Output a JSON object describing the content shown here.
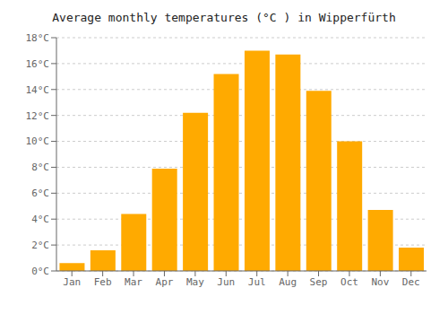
{
  "chart_data": {
    "type": "bar",
    "title": "Average monthly temperatures (°C ) in Wipperfürth",
    "categories": [
      "Jan",
      "Feb",
      "Mar",
      "Apr",
      "May",
      "Jun",
      "Jul",
      "Aug",
      "Sep",
      "Oct",
      "Nov",
      "Dec"
    ],
    "values": [
      0.6,
      1.6,
      4.4,
      7.9,
      12.2,
      15.2,
      17.0,
      16.7,
      13.9,
      10.0,
      4.7,
      1.8
    ],
    "color": "#FFAA00",
    "ylim": [
      0,
      18
    ],
    "yticks": [
      {
        "value": 0,
        "label": "0°C"
      },
      {
        "value": 2,
        "label": "2°C"
      },
      {
        "value": 4,
        "label": "4°C"
      },
      {
        "value": 6,
        "label": "6°C"
      },
      {
        "value": 8,
        "label": "8°C"
      },
      {
        "value": 10,
        "label": "10°C"
      },
      {
        "value": 12,
        "label": "12°C"
      },
      {
        "value": 14,
        "label": "14°C"
      },
      {
        "value": 16,
        "label": "16°C"
      },
      {
        "value": 18,
        "label": "18°C"
      }
    ],
    "grid": true
  }
}
